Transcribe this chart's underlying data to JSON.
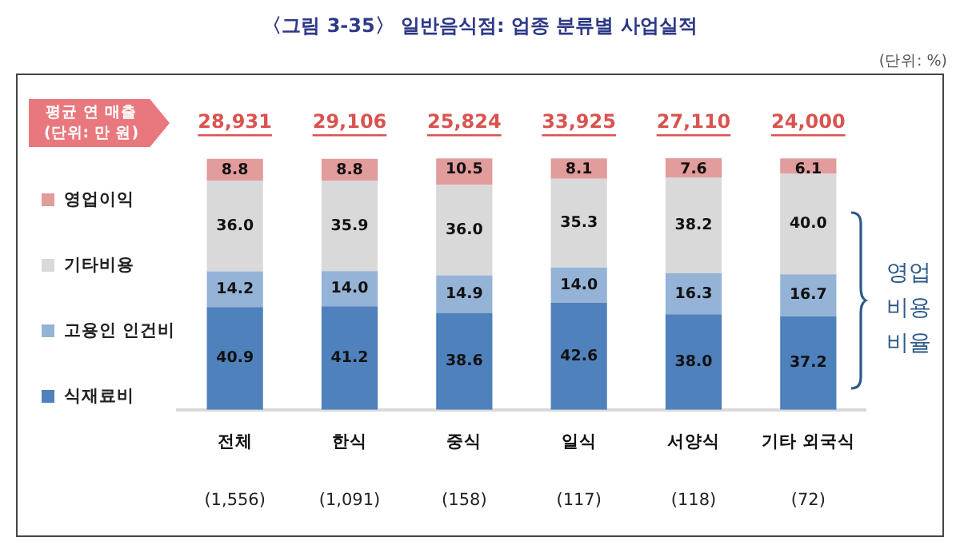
{
  "chart_data": {
    "type": "bar",
    "title": "〈그림 3-35〉 일반음식점: 업종 분류별 사업실적",
    "categories": [
      "전체",
      "한식",
      "중식",
      "일식",
      "서양식",
      "기타 외국식"
    ],
    "stacked": true,
    "legend": "left",
    "tick_labels": "x",
    "grid": false,
    "series": [
      {
        "name": "식재료비",
        "color": "#4f81bd",
        "values": [
          40.9,
          41.2,
          38.6,
          42.6,
          38.0,
          37.2
        ],
        "value_labels": [
          "40.9",
          "41.2",
          "38.6",
          "42.6",
          "38.0",
          "37.2"
        ]
      },
      {
        "name": "고용인 인건비",
        "color": "#95b3d7",
        "values": [
          14.2,
          14.0,
          14.9,
          14.0,
          16.3,
          16.7
        ],
        "value_labels": [
          "14.2",
          "14.0",
          "14.9",
          "14.0",
          "16.3",
          "16.7"
        ]
      },
      {
        "name": "기타비용",
        "color": "#d9d9d9",
        "values": [
          36.0,
          35.9,
          36.0,
          35.3,
          38.2,
          40.0
        ],
        "value_labels": [
          "36.0",
          "35.9",
          "36.0",
          "35.3",
          "38.2",
          "40.0"
        ]
      },
      {
        "name": "영업이익",
        "color": "#e29c9c",
        "values": [
          8.8,
          8.8,
          10.5,
          8.1,
          7.6,
          6.1
        ],
        "value_labels": [
          "8.8",
          "8.8",
          "10.5",
          "8.1",
          "7.6",
          "6.1"
        ]
      }
    ],
    "annotations": [
      "(단위: %)",
      "평균 연 매출 (단위: 만 원)",
      "영업 비용 비율",
      "28,931",
      "29,106",
      "25,824",
      "33,925",
      "27,110",
      "24,000",
      "(1,556)",
      "(1,091)",
      "(158)",
      "(117)",
      "(118)",
      "(72)"
    ]
  }
}
